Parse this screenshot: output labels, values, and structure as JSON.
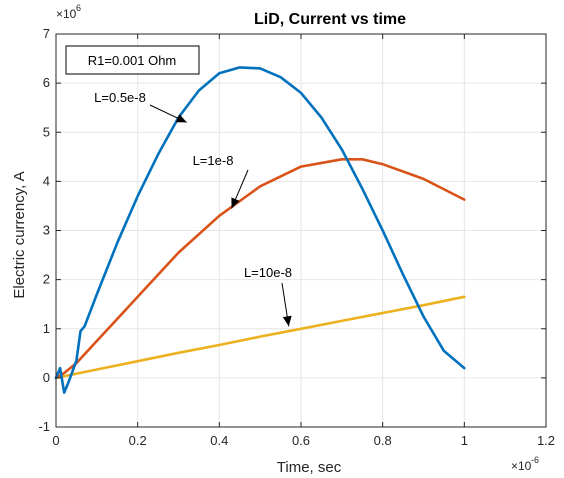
{
  "chart_data": {
    "type": "line",
    "title": "LiD, Current vs time",
    "xlabel": "Time, sec",
    "ylabel": "Electric currency, A",
    "x_exponent_base": "×10",
    "x_exponent_power": "-6",
    "y_exponent_base": "×10",
    "y_exponent_power": "6",
    "xlim": [
      0,
      1.2
    ],
    "ylim": [
      -1,
      7
    ],
    "x_ticks": [
      "0",
      "0.2",
      "0.4",
      "0.6",
      "0.8",
      "1",
      "1.2"
    ],
    "y_ticks": [
      "-1",
      "0",
      "1",
      "2",
      "3",
      "4",
      "5",
      "6",
      "7"
    ],
    "grid": true,
    "legend_box": "R1=0.001 Ohm",
    "series": [
      {
        "name": "L=0.5e-8",
        "color": "#0072BD",
        "x": [
          0,
          0.01,
          0.02,
          0.03,
          0.05,
          0.06,
          0.07,
          0.1,
          0.15,
          0.2,
          0.25,
          0.3,
          0.35,
          0.4,
          0.45,
          0.5,
          0.55,
          0.6,
          0.65,
          0.7,
          0.75,
          0.8,
          0.85,
          0.9,
          0.95,
          1.0
        ],
        "y": [
          0,
          0.2,
          -0.3,
          -0.1,
          0.35,
          0.95,
          1.05,
          1.7,
          2.75,
          3.7,
          4.55,
          5.3,
          5.85,
          6.2,
          6.32,
          6.3,
          6.12,
          5.8,
          5.3,
          4.65,
          3.85,
          3.0,
          2.1,
          1.25,
          0.55,
          0.2
        ]
      },
      {
        "name": "L=1e-8",
        "color": "#D95319",
        "x": [
          0,
          0.02,
          0.05,
          0.1,
          0.2,
          0.3,
          0.4,
          0.5,
          0.6,
          0.7,
          0.75,
          0.8,
          0.9,
          1.0
        ],
        "y": [
          0,
          0.1,
          0.3,
          0.75,
          1.65,
          2.55,
          3.3,
          3.9,
          4.3,
          4.45,
          4.45,
          4.35,
          4.05,
          3.63
        ]
      },
      {
        "name": "L=10e-8",
        "color": "#EDB120",
        "x": [
          0,
          0.1,
          0.2,
          0.3,
          0.4,
          0.5,
          0.6,
          0.7,
          0.8,
          0.9,
          1.0
        ],
        "y": [
          0,
          0.17,
          0.34,
          0.51,
          0.67,
          0.84,
          1.0,
          1.16,
          1.32,
          1.48,
          1.65
        ]
      }
    ],
    "annotations": [
      {
        "text": "L=0.5e-8",
        "arrow_to": {
          "x": 0.32,
          "y": 5.2
        }
      },
      {
        "text": "L=1e-8",
        "arrow_to": {
          "x": 0.43,
          "y": 3.45
        }
      },
      {
        "text": "L=10e-8",
        "arrow_to": {
          "x": 0.57,
          "y": 1.05
        }
      }
    ]
  }
}
